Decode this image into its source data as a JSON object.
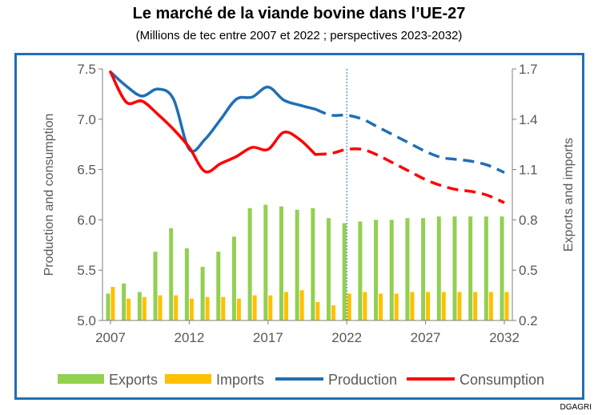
{
  "title": "Le marché de la viande bovine dans l’UE-27",
  "subtitle": "(Millions de tec entre 2007 et 2022 ; perspectives 2023-2032)",
  "source": "DGAGRI",
  "chart_data": {
    "type": "bar+line",
    "x_years": [
      2007,
      2008,
      2009,
      2010,
      2011,
      2012,
      2013,
      2014,
      2015,
      2016,
      2017,
      2018,
      2019,
      2020,
      2021,
      2022,
      2023,
      2024,
      2025,
      2026,
      2027,
      2028,
      2029,
      2030,
      2031,
      2032
    ],
    "xticks": [
      "2007",
      "2012",
      "2017",
      "2022",
      "2027",
      "2032"
    ],
    "projection_start": 2022,
    "left_axis": {
      "label": "Production and consumption",
      "ylim": [
        5.0,
        7.5
      ],
      "ticks": [
        "5.0",
        "5.5",
        "6.0",
        "6.5",
        "7.0",
        "7.5"
      ]
    },
    "right_axis": {
      "label": "Exports and imports",
      "ylim": [
        0.2,
        1.7
      ],
      "ticks": [
        "0.2",
        "0.5",
        "0.8",
        "1.1",
        "1.4",
        "1.7"
      ]
    },
    "series": [
      {
        "name": "Exports",
        "type": "bar",
        "axis": "right",
        "color": "#92d050",
        "values": [
          0.36,
          0.42,
          0.37,
          0.61,
          0.75,
          0.63,
          0.52,
          0.61,
          0.7,
          0.87,
          0.89,
          0.88,
          0.86,
          0.87,
          0.81,
          0.78,
          0.79,
          0.8,
          0.8,
          0.81,
          0.81,
          0.82,
          0.82,
          0.82,
          0.82,
          0.82
        ]
      },
      {
        "name": "Imports",
        "type": "bar",
        "axis": "right",
        "color": "#ffc000",
        "values": [
          0.4,
          0.33,
          0.34,
          0.35,
          0.35,
          0.33,
          0.34,
          0.34,
          0.33,
          0.35,
          0.35,
          0.37,
          0.38,
          0.31,
          0.29,
          0.36,
          0.37,
          0.36,
          0.36,
          0.37,
          0.37,
          0.37,
          0.37,
          0.37,
          0.37,
          0.37
        ]
      },
      {
        "name": "Production",
        "type": "line",
        "axis": "left",
        "color": "#1f6fb5",
        "values": [
          7.47,
          7.33,
          7.23,
          7.3,
          7.2,
          6.7,
          6.8,
          7.0,
          7.2,
          7.22,
          7.32,
          7.19,
          7.14,
          7.1,
          7.04,
          7.04,
          7.0,
          6.92,
          6.84,
          6.76,
          6.68,
          6.62,
          6.6,
          6.58,
          6.54,
          6.47
        ]
      },
      {
        "name": "Consumption",
        "type": "line",
        "axis": "left",
        "color": "#ff0000",
        "values": [
          7.47,
          7.17,
          7.18,
          7.05,
          6.9,
          6.72,
          6.48,
          6.56,
          6.63,
          6.72,
          6.7,
          6.87,
          6.8,
          6.65,
          6.66,
          6.7,
          6.7,
          6.64,
          6.56,
          6.48,
          6.4,
          6.34,
          6.3,
          6.28,
          6.24,
          6.17
        ]
      }
    ],
    "legend": [
      "Exports",
      "Imports",
      "Production",
      "Consumption"
    ],
    "legend_position": "bottom"
  }
}
